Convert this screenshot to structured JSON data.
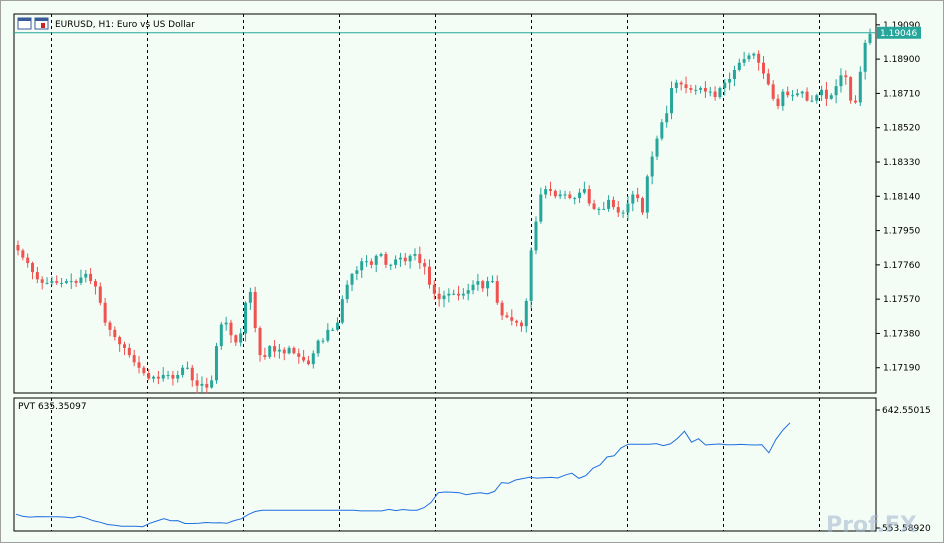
{
  "header": {
    "symbol_label": "EURUSD, H1:  Euro vs US Dollar",
    "icon": "chart-window-icon"
  },
  "indicator": {
    "label": "PVT 635.35097",
    "axis_top": "642.55015",
    "axis_bottom": "553.58920"
  },
  "current_price": "1.19046",
  "watermark": "Prof.FX",
  "colors": {
    "background": "#f4fcf6",
    "bull": "#26a69a",
    "bear": "#ef5350",
    "pvt_line": "#1e6fe0",
    "price_line": "#26a69a",
    "grid": "#000000"
  },
  "chart_data": [
    {
      "type": "candlestick",
      "title": "EURUSD, H1:  Euro vs US Dollar",
      "yticks": [
        1.1909,
        1.189,
        1.1871,
        1.1852,
        1.1833,
        1.1814,
        1.1795,
        1.1776,
        1.1757,
        1.1738,
        1.1719
      ],
      "ytick_labels": [
        "1.19090",
        "1.18900",
        "1.18710",
        "1.18520",
        "1.18330",
        "1.18140",
        "1.17950",
        "1.17760",
        "1.17570",
        "1.17380",
        "1.17190"
      ],
      "ylim": [
        1.1705,
        1.1915
      ],
      "current_price": 1.19046,
      "close": [
        1.1784,
        1.178,
        1.1777,
        1.1772,
        1.1768,
        1.1766,
        1.1766,
        1.1767,
        1.1766,
        1.1766,
        1.1767,
        1.1767,
        1.1766,
        1.1769,
        1.1771,
        1.1767,
        1.1764,
        1.1755,
        1.1744,
        1.174,
        1.1736,
        1.1732,
        1.173,
        1.1726,
        1.1722,
        1.1719,
        1.1716,
        1.1713,
        1.1714,
        1.1713,
        1.1715,
        1.1715,
        1.1713,
        1.1715,
        1.1719,
        1.1719,
        1.1712,
        1.1709,
        1.171,
        1.1708,
        1.1712,
        1.1731,
        1.1743,
        1.1744,
        1.1737,
        1.1733,
        1.1738,
        1.1755,
        1.1761,
        1.1741,
        1.1726,
        1.1725,
        1.1731,
        1.1728,
        1.1729,
        1.1727,
        1.173,
        1.1727,
        1.1725,
        1.1723,
        1.1721,
        1.1727,
        1.1734,
        1.1734,
        1.174,
        1.174,
        1.1744,
        1.1757,
        1.1765,
        1.1771,
        1.1773,
        1.1778,
        1.1778,
        1.1776,
        1.1781,
        1.1782,
        1.1776,
        1.1776,
        1.1779,
        1.178,
        1.1778,
        1.1781,
        1.1782,
        1.1777,
        1.1775,
        1.1765,
        1.176,
        1.1757,
        1.1759,
        1.176,
        1.176,
        1.1759,
        1.176,
        1.1762,
        1.1765,
        1.1767,
        1.1763,
        1.1767,
        1.1767,
        1.1755,
        1.1748,
        1.1747,
        1.1745,
        1.1744,
        1.1742,
        1.1756,
        1.1784,
        1.18,
        1.1815,
        1.1818,
        1.1817,
        1.1814,
        1.1815,
        1.1815,
        1.1813,
        1.1813,
        1.1816,
        1.1818,
        1.181,
        1.1807,
        1.1807,
        1.1807,
        1.1812,
        1.1808,
        1.1805,
        1.1805,
        1.181,
        1.1815,
        1.1813,
        1.1805,
        1.1825,
        1.1836,
        1.1846,
        1.1855,
        1.186,
        1.1874,
        1.1877,
        1.1876,
        1.1874,
        1.1873,
        1.1873,
        1.1874,
        1.1872,
        1.1872,
        1.1869,
        1.1874,
        1.1877,
        1.1879,
        1.1884,
        1.1888,
        1.189,
        1.1892,
        1.1893,
        1.1888,
        1.1882,
        1.1876,
        1.1868,
        1.1864,
        1.1872,
        1.187,
        1.187,
        1.1871,
        1.1872,
        1.1867,
        1.1867,
        1.187,
        1.1873,
        1.1868,
        1.187,
        1.1875,
        1.1881,
        1.188,
        1.1867,
        1.1866,
        1.1883,
        1.1899,
        1.1904
      ]
    },
    {
      "type": "line",
      "title": "PVT 635.35097",
      "yticks": [
        642.55015,
        553.5892
      ],
      "ylim": [
        553.5892,
        642.55015
      ],
      "series": [
        {
          "name": "PVT",
          "values": [
            564.0,
            562.3,
            561.8,
            562.2,
            562.0,
            562.0,
            562.0,
            561.8,
            561.2,
            562.4,
            561.0,
            559.0,
            557.9,
            556.2,
            555.6,
            554.9,
            554.9,
            554.9,
            554.6,
            557.1,
            558.9,
            560.7,
            559.1,
            559.2,
            557.0,
            557.0,
            557.1,
            557.7,
            557.4,
            557.6,
            557.1,
            559.2,
            560.5,
            563.7,
            566.0,
            567.0,
            567.0,
            567.0,
            567.0,
            567.0,
            567.0,
            567.0,
            567.0,
            567.0,
            567.0,
            567.0,
            567.0,
            567.0,
            567.0,
            566.5,
            566.5,
            566.5,
            566.5,
            567.6,
            566.7,
            567.5,
            566.9,
            567.0,
            569.0,
            572.9,
            580.2,
            580.7,
            580.5,
            580.2,
            578.7,
            579.6,
            580.1,
            579.3,
            581.2,
            587.8,
            587.3,
            589.8,
            590.8,
            591.8,
            591.2,
            591.4,
            591.7,
            591.3,
            593.4,
            594.9,
            591.0,
            593.1,
            598.7,
            601.1,
            607.1,
            608.0,
            614.0,
            616.8,
            616.8,
            616.8,
            616.8,
            617.2,
            615.7,
            617.0,
            621.1,
            626.6,
            618.3,
            620.9,
            616.2,
            616.6,
            616.9,
            616.3,
            616.3,
            616.6,
            616.3,
            616.2,
            616.4,
            610.3,
            620.4,
            627.5,
            632.9
          ]
        }
      ]
    }
  ]
}
